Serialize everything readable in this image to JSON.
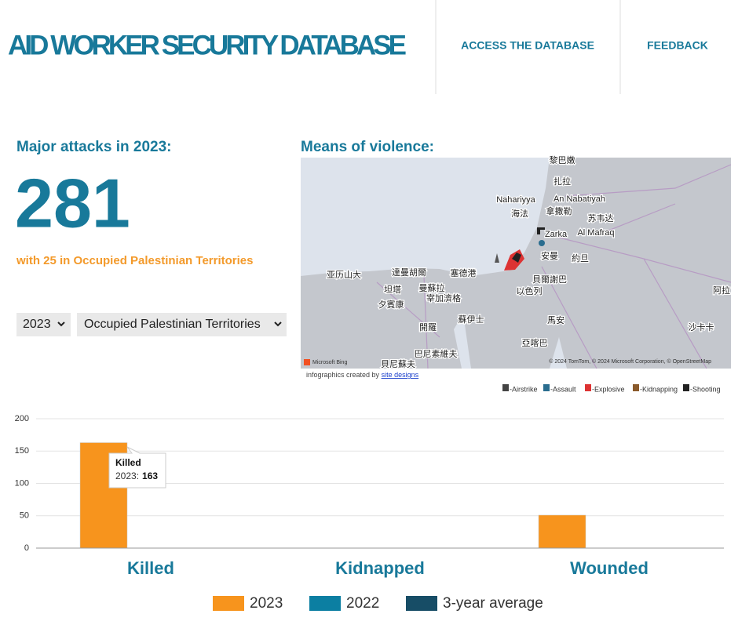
{
  "header": {
    "title": "AID WORKER SECURITY DATABASE",
    "nav": [
      "ACCESS THE DATABASE",
      "FEEDBACK"
    ]
  },
  "summary": {
    "heading": "Major attacks in 2023:",
    "count": 281,
    "note": "with 25 in Occupied Palestinian Territories",
    "year_select": "2023",
    "region_select": "Occupied Palestinian Territories"
  },
  "map": {
    "heading": "Means of violence:",
    "brand": "Microsoft Bing",
    "attribution": "© 2024 TomTom, © 2024 Microsoft Corporation, © OpenStreetMap",
    "credit": "infographics created by",
    "credit_link": "site designs",
    "places": [
      "黎巴嫩",
      "扎拉",
      "Nahariyya",
      "An Nabatiyah",
      "海法",
      "拿撒勒",
      "苏韦达",
      "Zarka",
      "Al Mafraq",
      "安曼",
      "約旦",
      "亚历山大",
      "達曼胡爾",
      "塞德港",
      "貝爾謝巴",
      "坦塔",
      "曼蘇拉",
      "以色列",
      "夕賓康",
      "宰加濟格",
      "阿拉",
      "開羅",
      "蘇伊士",
      "馬安",
      "沙卡卡",
      "亞喀巴",
      "巴尼素維夫",
      "貝尼蘇夫"
    ],
    "legend": [
      "-Airstrike",
      "-Assault",
      "-Explosive",
      "-Kidnapping",
      "-Shooting"
    ]
  },
  "chart_data": {
    "type": "bar",
    "categories": [
      "Killed",
      "Kidnapped",
      "Wounded"
    ],
    "series": [
      {
        "name": "2023",
        "color": "#f7941d",
        "values": [
          163,
          0,
          51
        ]
      },
      {
        "name": "2022",
        "color": "#0c7fa2",
        "values": [
          0,
          0,
          0
        ]
      },
      {
        "name": "3-year average",
        "color": "#174d66",
        "values": [
          0,
          0,
          0
        ]
      }
    ],
    "ylim": [
      0,
      200
    ],
    "yticks": [
      0,
      50,
      100,
      150,
      200
    ],
    "grid": true,
    "tooltip": {
      "title": "Killed",
      "series": "2023:",
      "value": 163
    }
  }
}
